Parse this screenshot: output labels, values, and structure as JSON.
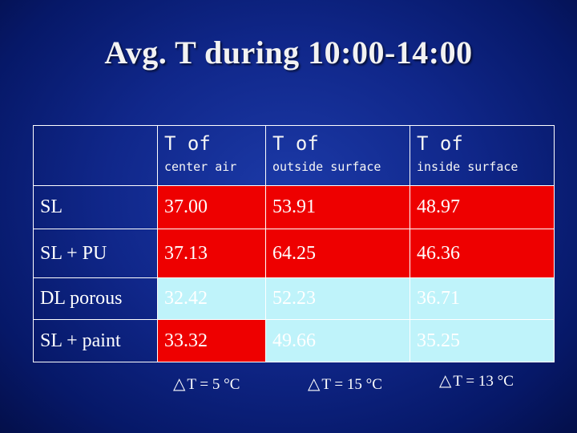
{
  "title": "Avg. T during 10:00-14:00",
  "colors": {
    "hot": "#ee0000",
    "cool": "#bff3fa",
    "background": "#10278a"
  },
  "table": {
    "headers": [
      {
        "top": "T of",
        "sub": "center air"
      },
      {
        "top": "T of",
        "sub": "outside surface"
      },
      {
        "top": "T of",
        "sub": "inside surface"
      }
    ],
    "rows": [
      {
        "label": "SL",
        "values": [
          "37.00",
          "53.91",
          "48.97"
        ]
      },
      {
        "label": "SL + PU",
        "values": [
          "37.13",
          "64.25",
          "46.36"
        ]
      },
      {
        "label": "DL porous",
        "values": [
          "32.42",
          "52.23",
          "36.71"
        ]
      },
      {
        "label": "SL + paint",
        "values": [
          "33.32",
          "49.66",
          "35.25"
        ]
      }
    ]
  },
  "deltas": [
    {
      "icon": "triangle-icon",
      "text": "T = 5 °C"
    },
    {
      "icon": "triangle-icon",
      "text": "T = 15 °C"
    },
    {
      "icon": "triangle-icon",
      "text": "T = 13 °C"
    }
  ]
}
